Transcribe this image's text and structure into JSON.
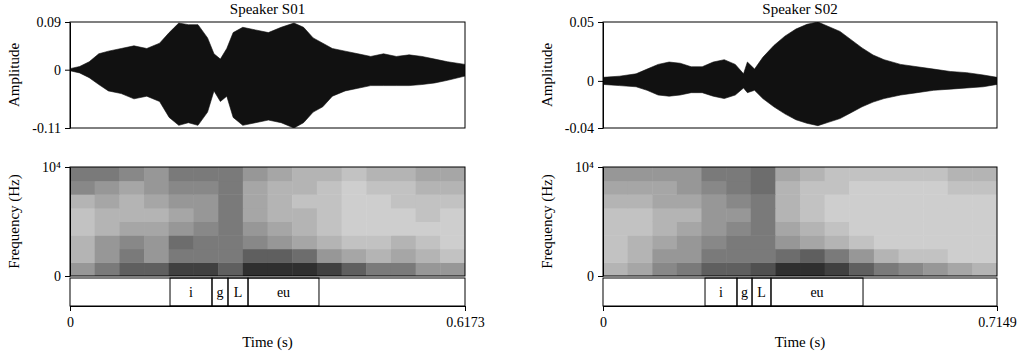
{
  "chart_data": [
    {
      "type": "area",
      "title": "Speaker S01",
      "ylabel": "Amplitude",
      "xlim": [
        0,
        0.6173
      ],
      "ylim": [
        -0.11,
        0.09
      ],
      "yticks": [
        -0.11,
        0,
        0.09
      ],
      "tick_labels": "y",
      "color": "#111111",
      "x": [
        0,
        0.015,
        0.03,
        0.045,
        0.06,
        0.08,
        0.1,
        0.12,
        0.14,
        0.155,
        0.17,
        0.185,
        0.2,
        0.215,
        0.225,
        0.235,
        0.245,
        0.255,
        0.27,
        0.29,
        0.31,
        0.33,
        0.35,
        0.365,
        0.38,
        0.395,
        0.41,
        0.43,
        0.45,
        0.47,
        0.49,
        0.51,
        0.53,
        0.55,
        0.57,
        0.59,
        0.6173
      ],
      "y_max": [
        0.002,
        0.006,
        0.015,
        0.03,
        0.035,
        0.04,
        0.045,
        0.04,
        0.05,
        0.07,
        0.088,
        0.085,
        0.085,
        0.06,
        0.03,
        0.02,
        0.04,
        0.07,
        0.08,
        0.075,
        0.07,
        0.08,
        0.088,
        0.08,
        0.06,
        0.05,
        0.04,
        0.035,
        0.03,
        0.025,
        0.03,
        0.025,
        0.028,
        0.025,
        0.02,
        0.015,
        0.01
      ],
      "y_min": [
        -0.002,
        -0.006,
        -0.015,
        -0.028,
        -0.04,
        -0.045,
        -0.055,
        -0.05,
        -0.06,
        -0.09,
        -0.105,
        -0.1,
        -0.105,
        -0.08,
        -0.04,
        -0.06,
        -0.05,
        -0.09,
        -0.105,
        -0.1,
        -0.095,
        -0.1,
        -0.11,
        -0.1,
        -0.08,
        -0.07,
        -0.05,
        -0.04,
        -0.035,
        -0.03,
        -0.03,
        -0.03,
        -0.03,
        -0.028,
        -0.025,
        -0.02,
        -0.012
      ]
    },
    {
      "type": "heatmap",
      "ylabel": "Frequency (Hz)",
      "xlabel": "Time (s)",
      "xlim": [
        0,
        0.6173
      ],
      "xticks": [
        0,
        0.6173
      ],
      "ylim": [
        0,
        10000
      ],
      "yticks": [
        0,
        {
          "value": 10000,
          "label": "10⁴"
        }
      ],
      "time_edges": [
        0,
        0.0386,
        0.0772,
        0.1157,
        0.1543,
        0.1929,
        0.2315,
        0.2701,
        0.3087,
        0.3472,
        0.3858,
        0.4244,
        0.463,
        0.5016,
        0.5402,
        0.5787,
        0.6173
      ],
      "freq_edges": [
        0,
        1250,
        2500,
        3750,
        5000,
        6250,
        7500,
        8750,
        10000
      ],
      "cells": [
        [
          0.5,
          0.6,
          0.7,
          0.7,
          0.8,
          0.8,
          0.7,
          0.85,
          0.85,
          0.85,
          0.8,
          0.7,
          0.6,
          0.6,
          0.5,
          0.5
        ],
        [
          0.4,
          0.5,
          0.6,
          0.5,
          0.6,
          0.6,
          0.6,
          0.7,
          0.7,
          0.65,
          0.5,
          0.45,
          0.4,
          0.45,
          0.4,
          0.35
        ],
        [
          0.4,
          0.5,
          0.55,
          0.5,
          0.65,
          0.6,
          0.6,
          0.55,
          0.5,
          0.45,
          0.4,
          0.35,
          0.35,
          0.4,
          0.35,
          0.3
        ],
        [
          0.35,
          0.4,
          0.45,
          0.45,
          0.5,
          0.55,
          0.6,
          0.5,
          0.45,
          0.4,
          0.35,
          0.3,
          0.3,
          0.3,
          0.3,
          0.3
        ],
        [
          0.35,
          0.4,
          0.4,
          0.4,
          0.45,
          0.5,
          0.6,
          0.45,
          0.4,
          0.4,
          0.35,
          0.3,
          0.3,
          0.3,
          0.35,
          0.3
        ],
        [
          0.4,
          0.45,
          0.4,
          0.45,
          0.5,
          0.5,
          0.6,
          0.45,
          0.4,
          0.35,
          0.35,
          0.3,
          0.3,
          0.35,
          0.35,
          0.35
        ],
        [
          0.55,
          0.5,
          0.45,
          0.5,
          0.55,
          0.55,
          0.6,
          0.45,
          0.4,
          0.4,
          0.35,
          0.3,
          0.35,
          0.35,
          0.4,
          0.4
        ],
        [
          0.6,
          0.6,
          0.55,
          0.5,
          0.6,
          0.6,
          0.6,
          0.5,
          0.45,
          0.4,
          0.4,
          0.35,
          0.4,
          0.4,
          0.45,
          0.45
        ]
      ],
      "segments": [
        {
          "label": "i",
          "start": 0.1563,
          "end": 0.2219
        },
        {
          "label": "g",
          "start": 0.2219,
          "end": 0.2469
        },
        {
          "label": "L",
          "start": 0.2469,
          "end": 0.2782
        },
        {
          "label": "eu",
          "start": 0.2782,
          "end": 0.3891
        }
      ]
    },
    {
      "type": "area",
      "title": "Speaker S02",
      "ylabel": "Amplitude",
      "xlim": [
        0,
        0.7149
      ],
      "ylim": [
        -0.04,
        0.05
      ],
      "yticks": [
        -0.04,
        0,
        0.05
      ],
      "tick_labels": "y",
      "color": "#111111",
      "x": [
        0,
        0.03,
        0.06,
        0.08,
        0.1,
        0.12,
        0.14,
        0.16,
        0.18,
        0.2,
        0.22,
        0.24,
        0.255,
        0.262,
        0.275,
        0.29,
        0.31,
        0.33,
        0.35,
        0.37,
        0.39,
        0.41,
        0.43,
        0.45,
        0.47,
        0.49,
        0.51,
        0.54,
        0.57,
        0.6,
        0.63,
        0.66,
        0.69,
        0.7149
      ],
      "y_max": [
        0.003,
        0.004,
        0.006,
        0.01,
        0.014,
        0.016,
        0.015,
        0.012,
        0.012,
        0.016,
        0.018,
        0.014,
        0.006,
        0.016,
        0.01,
        0.02,
        0.03,
        0.038,
        0.044,
        0.048,
        0.05,
        0.046,
        0.042,
        0.035,
        0.028,
        0.022,
        0.018,
        0.014,
        0.012,
        0.01,
        0.008,
        0.007,
        0.005,
        0.003
      ],
      "y_min": [
        -0.003,
        -0.004,
        -0.005,
        -0.008,
        -0.012,
        -0.013,
        -0.012,
        -0.01,
        -0.01,
        -0.013,
        -0.015,
        -0.012,
        -0.006,
        -0.01,
        -0.008,
        -0.015,
        -0.022,
        -0.028,
        -0.033,
        -0.036,
        -0.038,
        -0.035,
        -0.032,
        -0.027,
        -0.022,
        -0.018,
        -0.015,
        -0.012,
        -0.01,
        -0.008,
        -0.007,
        -0.006,
        -0.005,
        -0.003
      ]
    },
    {
      "type": "heatmap",
      "ylabel": "Frequency (Hz)",
      "xlabel": "Time (s)",
      "xlim": [
        0,
        0.7149
      ],
      "xticks": [
        0,
        0.7149
      ],
      "ylim": [
        0,
        10000
      ],
      "yticks": [
        0,
        {
          "value": 10000,
          "label": "10⁴"
        }
      ],
      "time_edges": [
        0,
        0.0447,
        0.0894,
        0.134,
        0.1787,
        0.2234,
        0.2681,
        0.3128,
        0.3575,
        0.4021,
        0.4468,
        0.4915,
        0.5362,
        0.5809,
        0.6255,
        0.6702,
        0.7149
      ],
      "freq_edges": [
        0,
        1250,
        2500,
        3750,
        5000,
        6250,
        7500,
        8750,
        10000
      ],
      "cells": [
        [
          0.4,
          0.45,
          0.55,
          0.6,
          0.7,
          0.7,
          0.75,
          0.85,
          0.85,
          0.8,
          0.7,
          0.6,
          0.55,
          0.5,
          0.45,
          0.4
        ],
        [
          0.35,
          0.4,
          0.5,
          0.5,
          0.6,
          0.6,
          0.6,
          0.65,
          0.7,
          0.6,
          0.5,
          0.4,
          0.35,
          0.35,
          0.3,
          0.3
        ],
        [
          0.35,
          0.4,
          0.45,
          0.5,
          0.55,
          0.6,
          0.6,
          0.5,
          0.45,
          0.4,
          0.35,
          0.3,
          0.3,
          0.3,
          0.3,
          0.3
        ],
        [
          0.35,
          0.35,
          0.4,
          0.45,
          0.5,
          0.55,
          0.6,
          0.45,
          0.4,
          0.35,
          0.3,
          0.3,
          0.3,
          0.3,
          0.3,
          0.3
        ],
        [
          0.35,
          0.35,
          0.4,
          0.4,
          0.5,
          0.5,
          0.6,
          0.4,
          0.35,
          0.3,
          0.3,
          0.3,
          0.3,
          0.3,
          0.3,
          0.3
        ],
        [
          0.4,
          0.4,
          0.45,
          0.45,
          0.5,
          0.55,
          0.6,
          0.4,
          0.35,
          0.3,
          0.3,
          0.3,
          0.3,
          0.3,
          0.3,
          0.3
        ],
        [
          0.45,
          0.45,
          0.45,
          0.5,
          0.55,
          0.6,
          0.65,
          0.4,
          0.35,
          0.35,
          0.3,
          0.3,
          0.3,
          0.3,
          0.35,
          0.35
        ],
        [
          0.5,
          0.5,
          0.5,
          0.5,
          0.6,
          0.6,
          0.65,
          0.45,
          0.4,
          0.35,
          0.35,
          0.35,
          0.35,
          0.35,
          0.4,
          0.4
        ]
      ],
      "segments": [
        {
          "label": "i",
          "start": 0.1851,
          "end": 0.2431
        },
        {
          "label": "g",
          "start": 0.2431,
          "end": 0.2704
        },
        {
          "label": "L",
          "start": 0.2704,
          "end": 0.3048
        },
        {
          "label": "eu",
          "start": 0.3048,
          "end": 0.4718
        }
      ]
    }
  ]
}
